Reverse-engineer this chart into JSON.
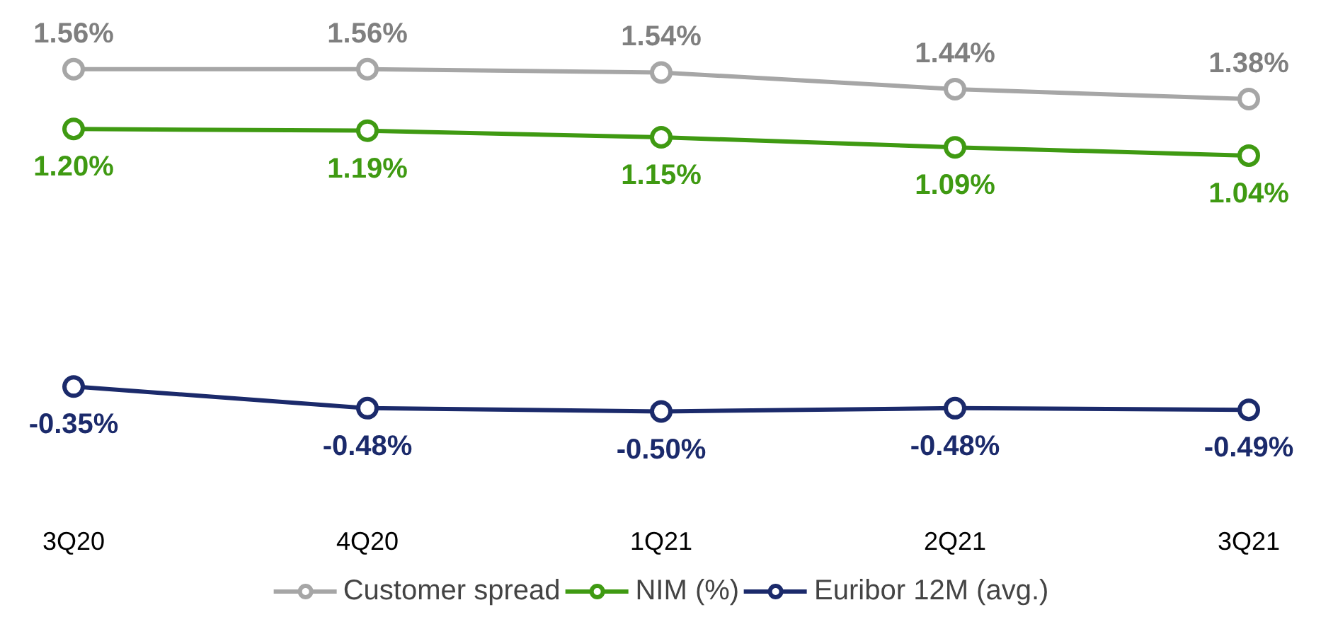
{
  "chart_data": {
    "type": "line",
    "categories": [
      "3Q20",
      "4Q20",
      "1Q21",
      "2Q21",
      "3Q21"
    ],
    "series": [
      {
        "name": "Customer spread",
        "color": "#a6a6a6",
        "values": [
          1.56,
          1.56,
          1.54,
          1.44,
          1.38
        ],
        "value_labels": [
          "1.56%",
          "1.56%",
          "1.54%",
          "1.44%",
          "1.38%"
        ]
      },
      {
        "name": "NIM (%)",
        "color": "#3f9a12",
        "values": [
          1.2,
          1.19,
          1.15,
          1.09,
          1.04
        ],
        "value_labels": [
          "1.20%",
          "1.19%",
          "1.15%",
          "1.09%",
          "1.04%"
        ]
      },
      {
        "name": "Euribor 12M (avg.)",
        "color": "#1b2a6b",
        "values": [
          -0.35,
          -0.48,
          -0.5,
          -0.48,
          -0.49
        ],
        "value_labels": [
          "-0.35%",
          "-0.48%",
          "-0.50%",
          "-0.48%",
          "-0.49%"
        ]
      }
    ],
    "marker": "circle",
    "line_style": "solid",
    "legend": "bottom"
  }
}
